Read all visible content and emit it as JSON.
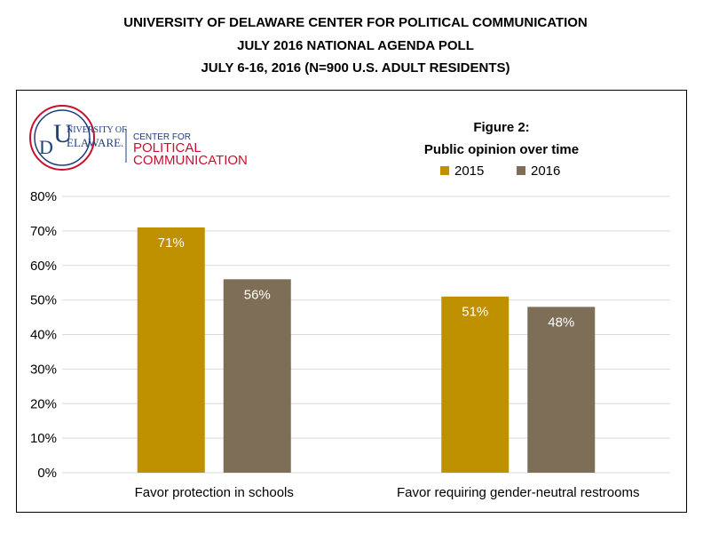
{
  "header": {
    "line1": "UNIVERSITY OF DELAWARE CENTER FOR POLITICAL COMMUNICATION",
    "line2": "JULY 2016 NATIONAL AGENDA POLL",
    "line3": "JULY 6-16, 2016 (N=900 U.S. ADULT RESIDENTS)"
  },
  "logo": {
    "university": "UNIVERSITY OF DELAWARE",
    "center_for": "CENTER FOR",
    "political": "POLITICAL",
    "communication": "COMMUNICATION"
  },
  "figure": {
    "label": "Figure 2:",
    "subtitle": "Public opinion over time"
  },
  "colors": {
    "s2015": "#BF9000",
    "s2016": "#7F6E57",
    "grid": "#D9D9D9",
    "logo_red": "#C8102E",
    "logo_blue": "#1F3F7A"
  },
  "chart_data": {
    "type": "bar",
    "categories": [
      "Favor protection in schools",
      "Favor requiring gender-neutral restrooms"
    ],
    "series": [
      {
        "name": "2015",
        "values": [
          71,
          51
        ]
      },
      {
        "name": "2016",
        "values": [
          56,
          48
        ]
      }
    ],
    "data_labels": [
      [
        "71%",
        "51%"
      ],
      [
        "56%",
        "48%"
      ]
    ],
    "yticks": [
      "0%",
      "10%",
      "20%",
      "30%",
      "40%",
      "50%",
      "60%",
      "70%",
      "80%"
    ],
    "ylim": [
      0,
      80
    ],
    "grid": true,
    "legend_position": "top-right"
  }
}
